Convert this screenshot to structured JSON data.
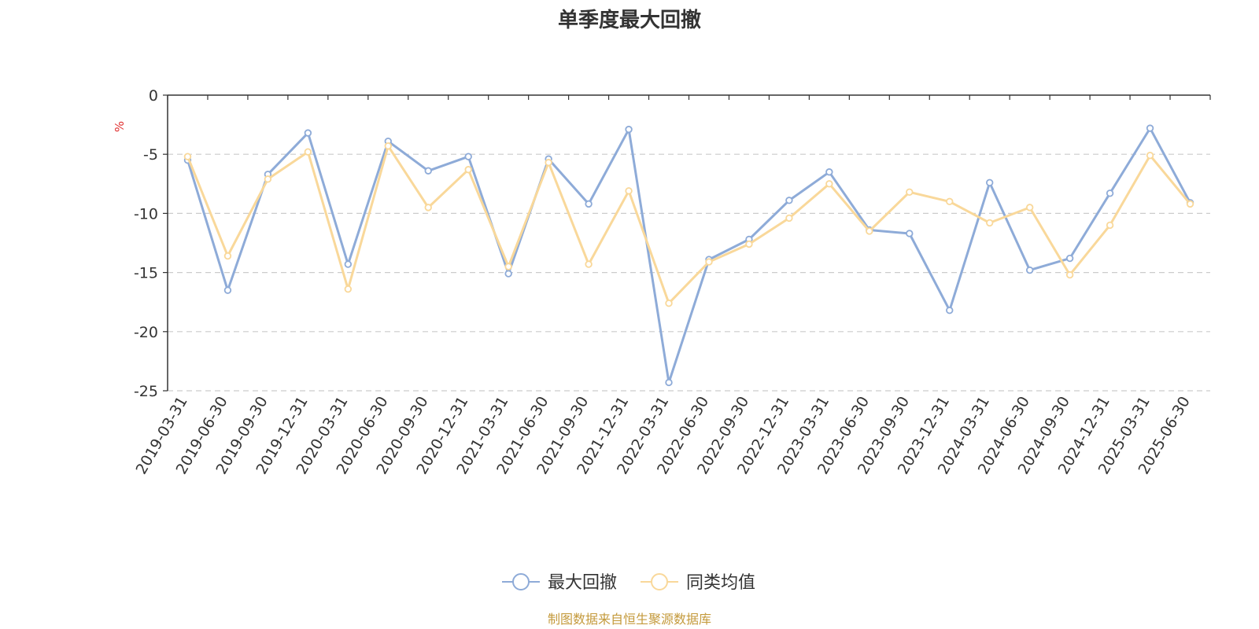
{
  "chart_data": {
    "type": "line",
    "title": "单季度最大回撤",
    "ylabel": "%",
    "ylim": [
      -25,
      0
    ],
    "yticks": [
      0,
      -5,
      -10,
      -15,
      -20,
      -25
    ],
    "grid": true,
    "legend_position": "bottom",
    "categories": [
      "2019-03-31",
      "2019-06-30",
      "2019-09-30",
      "2019-12-31",
      "2020-03-31",
      "2020-06-30",
      "2020-09-30",
      "2020-12-31",
      "2021-03-31",
      "2021-06-30",
      "2021-09-30",
      "2021-12-31",
      "2022-03-31",
      "2022-06-30",
      "2022-09-30",
      "2022-12-31",
      "2023-03-31",
      "2023-06-30",
      "2023-09-30",
      "2023-12-31",
      "2024-03-31",
      "2024-06-30",
      "2024-09-30",
      "2024-12-31",
      "2025-03-31",
      "2025-06-30"
    ],
    "series": [
      {
        "name": "最大回撤",
        "color": "#8eabd8",
        "values": [
          -5.5,
          -16.5,
          -6.7,
          -3.2,
          -14.3,
          -3.9,
          -6.4,
          -5.2,
          -15.1,
          -5.4,
          -9.2,
          -2.9,
          -24.3,
          -13.9,
          -12.2,
          -8.9,
          -6.5,
          -11.4,
          -11.7,
          -18.2,
          -7.4,
          -14.8,
          -13.8,
          -8.3,
          -2.8,
          -9.1
        ]
      },
      {
        "name": "同类均值",
        "color": "#f9d89a",
        "values": [
          -5.2,
          -13.6,
          -7.1,
          -4.8,
          -16.4,
          -4.3,
          -9.5,
          -6.3,
          -14.5,
          -5.7,
          -14.3,
          -8.1,
          -17.6,
          -14.1,
          -12.6,
          -10.4,
          -7.5,
          -11.5,
          -8.2,
          -9.0,
          -10.8,
          -9.5,
          -15.2,
          -11.0,
          -5.1,
          -9.2
        ]
      }
    ]
  },
  "source": "制图数据来自恒生聚源数据库",
  "colors": {
    "axis": "#333333",
    "grid": "#cccccc",
    "unit": "#e03030",
    "source": "#c49a3c"
  }
}
